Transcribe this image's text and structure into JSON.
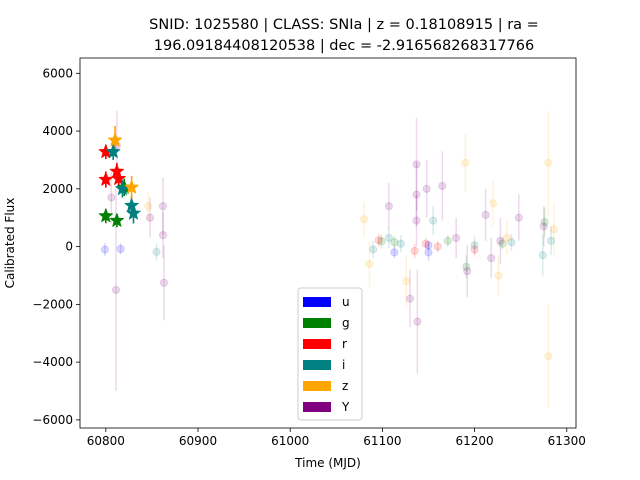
{
  "chart_data": {
    "type": "scatter",
    "title_lines": [
      "SNID: 1025580 | CLASS: SNIa | z = 0.18108915 | ra =",
      "196.09184408120538 | dec = -2.916568268317766"
    ],
    "xlabel": "Time (MJD)",
    "ylabel": "Calibrated Flux",
    "xlim": [
      60772,
      61310
    ],
    "ylim": [
      -6280,
      6530
    ],
    "xticks": [
      60800,
      60900,
      61000,
      61100,
      61200,
      61300
    ],
    "yticks": [
      -6000,
      -4000,
      -2000,
      0,
      2000,
      4000,
      6000
    ],
    "xtick_labels": [
      "60800",
      "60900",
      "61000",
      "61100",
      "61200",
      "61300"
    ],
    "ytick_labels": [
      "−6000",
      "−4000",
      "−2000",
      "0",
      "2000",
      "4000",
      "6000"
    ],
    "grid": false,
    "legend_position": "lower-center",
    "series": [
      {
        "name": "u",
        "color": "#0000ff",
        "faint": [
          [
            60799,
            -100,
            220
          ],
          [
            60816,
            -80,
            200
          ],
          [
            61113,
            -200,
            200
          ],
          [
            61150,
            50,
            150
          ],
          [
            61150,
            -200,
            300
          ]
        ],
        "detections": []
      },
      {
        "name": "g",
        "color": "#008000",
        "faint": [
          [
            61099,
            180,
            250
          ],
          [
            61113,
            150,
            200
          ],
          [
            61171,
            200,
            200
          ],
          [
            61230,
            100,
            200
          ],
          [
            61191,
            -700,
            400
          ],
          [
            61276,
            850,
            500
          ]
        ],
        "detections": [
          [
            60800,
            1060,
            250
          ],
          [
            60812,
            900,
            230
          ],
          [
            60820,
            2050,
            300
          ]
        ]
      },
      {
        "name": "r",
        "color": "#ff0000",
        "faint": [
          [
            61096,
            220,
            220
          ],
          [
            61135,
            -150,
            250
          ],
          [
            61147,
            100,
            200
          ],
          [
            61160,
            0,
            200
          ],
          [
            61200,
            -100,
            250
          ]
        ],
        "detections": [
          [
            60800,
            3280,
            250
          ],
          [
            60800,
            2320,
            280
          ],
          [
            60812,
            2600,
            300
          ],
          [
            60814,
            2350,
            300
          ]
        ]
      },
      {
        "name": "i",
        "color": "#008080",
        "faint": [
          [
            60855,
            -180,
            300
          ],
          [
            61090,
            -100,
            300
          ],
          [
            61107,
            300,
            350
          ],
          [
            61120,
            100,
            300
          ],
          [
            61155,
            900,
            500
          ],
          [
            61200,
            50,
            300
          ],
          [
            61240,
            150,
            300
          ],
          [
            61274,
            -300,
            700
          ],
          [
            61283,
            200,
            500
          ]
        ],
        "detections": [
          [
            60808,
            3280,
            280
          ],
          [
            60818,
            2000,
            300
          ],
          [
            60828,
            1420,
            350
          ],
          [
            60830,
            1150,
            350
          ]
        ]
      },
      {
        "name": "z",
        "color": "#ffa500",
        "faint": [
          [
            60846,
            1400,
            500
          ],
          [
            61080,
            950,
            600
          ],
          [
            61086,
            -600,
            800
          ],
          [
            61126,
            -1200,
            900
          ],
          [
            61190,
            2900,
            1000
          ],
          [
            61220,
            1500,
            800
          ],
          [
            61226,
            -1000,
            700
          ],
          [
            61235,
            300,
            600
          ],
          [
            61280,
            2900,
            1800
          ],
          [
            61280,
            -3800,
            1800
          ],
          [
            61286,
            600,
            900
          ]
        ],
        "detections": [
          [
            60810,
            3680,
            500
          ],
          [
            60828,
            2050,
            400
          ]
        ]
      },
      {
        "name": "Y",
        "color": "#800080",
        "faint": [
          [
            60806,
            1700,
            900
          ],
          [
            60811,
            -1500,
            3500
          ],
          [
            60812,
            3500,
            1200
          ],
          [
            60848,
            1000,
            700
          ],
          [
            60862,
            1400,
            1000
          ],
          [
            60862,
            400,
            800
          ],
          [
            60863,
            -1250,
            1300
          ],
          [
            61107,
            1400,
            800
          ],
          [
            61130,
            -1800,
            1000
          ],
          [
            61137,
            2850,
            1600
          ],
          [
            61137,
            1800,
            1100
          ],
          [
            61137,
            900,
            900
          ],
          [
            61138,
            -2600,
            1800
          ],
          [
            61148,
            2000,
            1000
          ],
          [
            61165,
            2100,
            1200
          ],
          [
            61180,
            300,
            700
          ],
          [
            61192,
            -850,
            900
          ],
          [
            61212,
            1100,
            900
          ],
          [
            61218,
            -400,
            700
          ],
          [
            61228,
            200,
            800
          ],
          [
            61248,
            1000,
            800
          ],
          [
            61275,
            700,
            700
          ]
        ]
      }
    ]
  }
}
